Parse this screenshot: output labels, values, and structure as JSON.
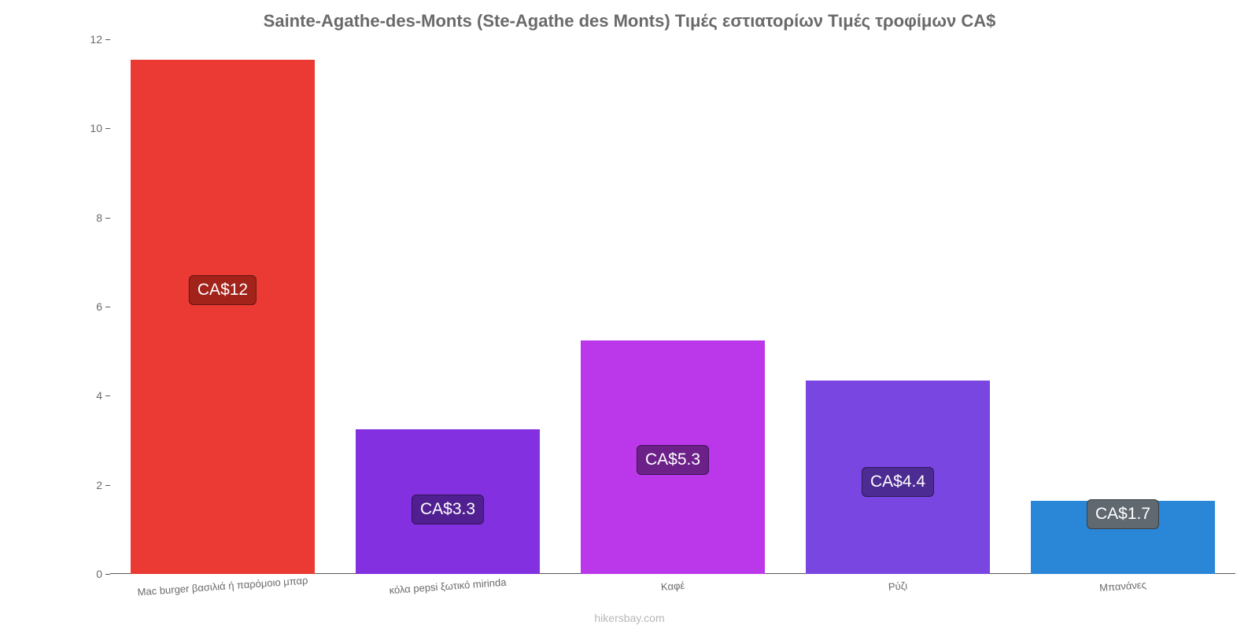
{
  "chart": {
    "type": "bar",
    "title": "Sainte-Agathe-des-Monts (Ste-Agathe des Monts) Τιμές εστιατορίων Τιμές τροφίμων CA$",
    "title_fontsize": 22,
    "title_color": "#6a6a6a",
    "background_color": "#ffffff",
    "credit": "hikersbay.com",
    "credit_color": "#b7b7b7",
    "y": {
      "min": 0,
      "max": 12,
      "tick_step": 2,
      "tick_color": "#6a6a6a",
      "axis_color": "#595959",
      "label_fontsize": 14
    },
    "x_label_fontsize": 13,
    "x_label_color": "#6a6a6a",
    "x_label_rotation_deg": -4,
    "bar_width_ratio": 0.82,
    "value_label_fontsize": 21,
    "bars": [
      {
        "category": "Mac burger βασιλιά ή παρόμοιο μπαρ",
        "value": 11.55,
        "display_label": "CA$12",
        "fill": "#ea3a33",
        "label_bg": "#a2231a",
        "label_text_color": "#ffffff"
      },
      {
        "category": "κόλα pepsi ξωτικό mirinda",
        "value": 3.25,
        "display_label": "CA$3.3",
        "fill": "#8330e0",
        "label_bg": "#502091",
        "label_text_color": "#ffffff"
      },
      {
        "category": "Καφέ",
        "value": 5.25,
        "display_label": "CA$5.3",
        "fill": "#bb37ea",
        "label_bg": "#6c2189",
        "label_text_color": "#ffffff"
      },
      {
        "category": "Ρύζι",
        "value": 4.35,
        "display_label": "CA$4.4",
        "fill": "#7a46e2",
        "label_bg": "#4c2b92",
        "label_text_color": "#ffffff"
      },
      {
        "category": "Μπανάνες",
        "value": 1.65,
        "display_label": "CA$1.7",
        "fill": "#2a87d8",
        "label_bg": "#606870",
        "label_text_color": "#ffffff"
      }
    ]
  }
}
